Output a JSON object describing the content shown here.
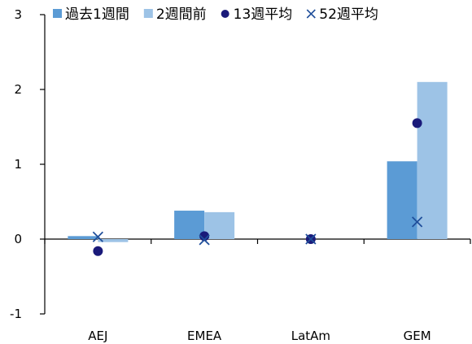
{
  "chart_data": {
    "type": "bar",
    "categories": [
      "AEJ",
      "EMEA",
      "LatAm",
      "GEM"
    ],
    "series": [
      {
        "name": "過去1週間",
        "kind": "bar",
        "values": [
          0.04,
          0.38,
          0.0,
          1.04
        ]
      },
      {
        "name": "2週間前",
        "kind": "bar",
        "values": [
          -0.04,
          0.36,
          0.0,
          2.1
        ]
      },
      {
        "name": "13週平均",
        "kind": "marker-circle",
        "values": [
          -0.16,
          0.04,
          0.0,
          1.55
        ]
      },
      {
        "name": "52週平均",
        "kind": "marker-x",
        "values": [
          0.03,
          -0.01,
          0.0,
          0.23
        ]
      }
    ],
    "ylim": [
      -1,
      3
    ],
    "yticks": [
      "-1",
      "0",
      "1",
      "2",
      "3"
    ],
    "title": "",
    "xlabel": "",
    "ylabel": "",
    "legend_position": "top",
    "grid": false
  },
  "colors": {
    "past1w": "#5b9bd5",
    "prev2w": "#9dc3e6",
    "avg13": "#1a1a7a",
    "avg52": "#1f4e9a",
    "axis": "#000000"
  }
}
